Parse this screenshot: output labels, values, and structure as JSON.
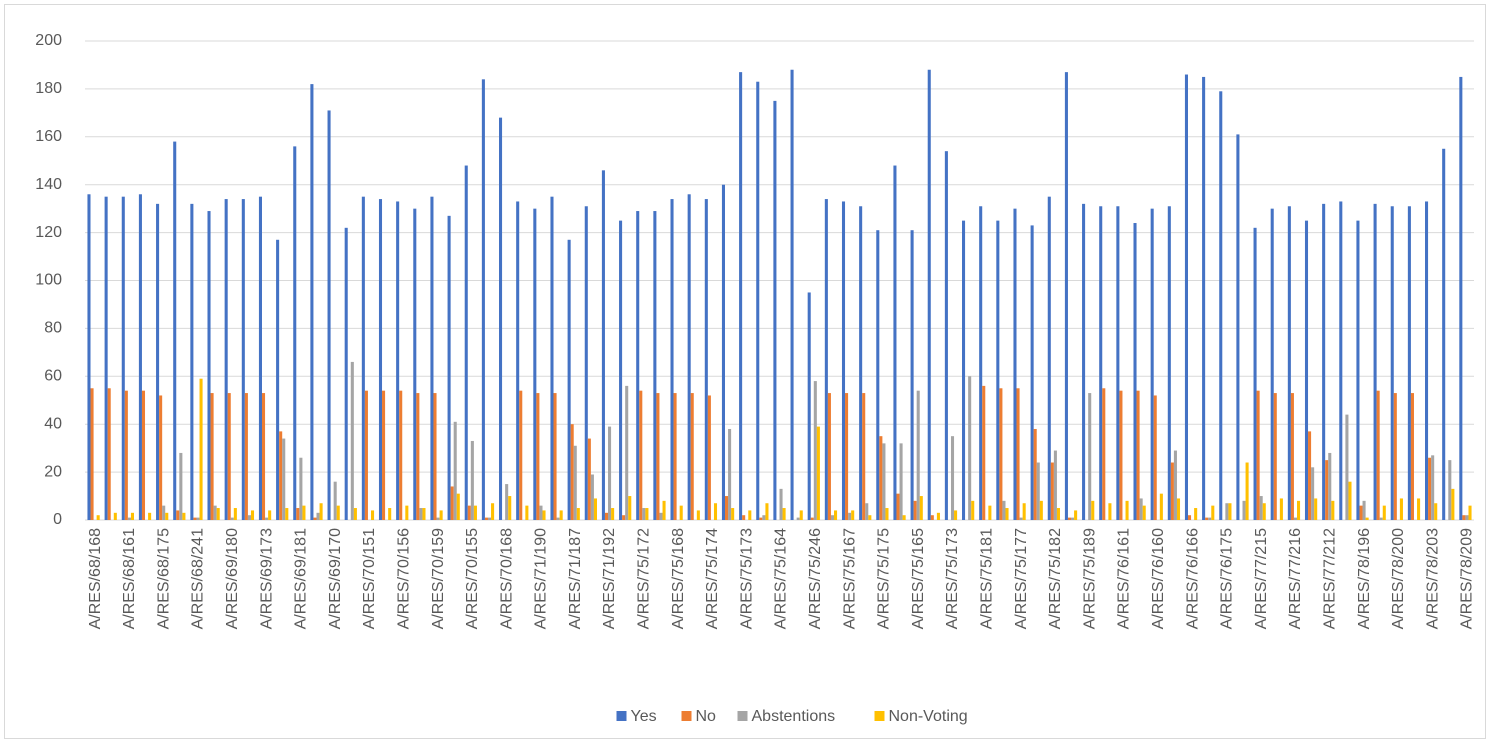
{
  "chart_data": {
    "type": "bar",
    "categories": [
      "A/RES/68/168",
      null,
      "A/RES/68/161",
      null,
      "A/RES/68/175",
      null,
      "A/RES/68/241",
      null,
      "A/RES/69/180",
      null,
      "A/RES/69/173",
      null,
      "A/RES/69/181",
      null,
      "A/RES/69/170",
      null,
      "A/RES/70/151",
      null,
      "A/RES/70/156",
      null,
      "A/RES/70/159",
      null,
      "A/RES/70/155",
      null,
      "A/RES/70/168",
      null,
      "A/RES/71/190",
      null,
      "A/RES/71/187",
      null,
      "A/RES/71/192",
      null,
      "A/RES/75/172",
      null,
      "A/RES/75/168",
      null,
      "A/RES/75/174",
      null,
      "A/RES/75/173",
      null,
      "A/RES/75/164",
      null,
      "A/RES/75/246",
      null,
      "A/RES/75/167",
      null,
      "A/RES/75/175",
      null,
      "A/RES/75/165",
      null,
      "A/RES/75/173",
      null,
      "A/RES/75/181",
      null,
      "A/RES/75/177",
      null,
      "A/RES/75/182",
      null,
      "A/RES/75/189",
      null,
      "A/RES/76/161",
      null,
      "A/RES/76/160",
      null,
      "A/RES/76/166",
      null,
      "A/RES/76/175",
      null,
      "A/RES/77/215",
      null,
      "A/RES/77/216",
      null,
      "A/RES/77/212",
      null,
      "A/RES/78/196",
      null,
      "A/RES/78/200",
      null,
      "A/RES/78/203",
      null,
      "A/RES/78/209"
    ],
    "series": [
      {
        "name": "Yes",
        "color": "#4472c4",
        "values": [
          136,
          135,
          135,
          136,
          132,
          158,
          132,
          129,
          134,
          134,
          135,
          117,
          156,
          182,
          171,
          122,
          135,
          134,
          133,
          130,
          135,
          127,
          148,
          184,
          168,
          133,
          130,
          135,
          117,
          131,
          146,
          125,
          129,
          129,
          134,
          136,
          134,
          140,
          187,
          183,
          175,
          188,
          95,
          134,
          133,
          131,
          121,
          148,
          121,
          188,
          154,
          125,
          131,
          125,
          130,
          123,
          135,
          187,
          132,
          131,
          131,
          124,
          130,
          131,
          186,
          185,
          179,
          161,
          122,
          130,
          131,
          125,
          132,
          133,
          125,
          132,
          131,
          131,
          133,
          155,
          185
        ]
      },
      {
        "name": "No",
        "color": "#ed7d31",
        "values": [
          55,
          55,
          54,
          54,
          52,
          4,
          1,
          53,
          53,
          53,
          53,
          37,
          5,
          1,
          0,
          0,
          54,
          54,
          54,
          53,
          53,
          14,
          6,
          1,
          0,
          54,
          53,
          53,
          40,
          34,
          3,
          2,
          54,
          53,
          53,
          53,
          52,
          10,
          2,
          1,
          0,
          0,
          1,
          53,
          53,
          53,
          35,
          11,
          8,
          2,
          0,
          0,
          56,
          55,
          55,
          38,
          24,
          1,
          0,
          55,
          54,
          54,
          52,
          24,
          2,
          1,
          0,
          0,
          54,
          53,
          53,
          37,
          25,
          0,
          6,
          54,
          53,
          53,
          26,
          0,
          2
        ]
      },
      {
        "name": "Abstentions",
        "color": "#a5a5a5",
        "values": [
          0,
          0,
          1,
          0,
          6,
          28,
          1,
          6,
          1,
          2,
          1,
          34,
          26,
          3,
          16,
          66,
          0,
          0,
          0,
          5,
          1,
          41,
          33,
          1,
          15,
          0,
          6,
          1,
          31,
          19,
          39,
          56,
          5,
          3,
          0,
          0,
          0,
          38,
          0,
          2,
          13,
          1,
          58,
          2,
          3,
          7,
          32,
          32,
          54,
          0,
          35,
          60,
          0,
          8,
          1,
          24,
          29,
          1,
          53,
          0,
          0,
          9,
          0,
          29,
          0,
          1,
          7,
          8,
          10,
          0,
          1,
          22,
          28,
          44,
          8,
          1,
          0,
          0,
          27,
          25,
          2
        ]
      },
      {
        "name": "Non-Voting",
        "color": "#ffc000",
        "values": [
          2,
          3,
          3,
          3,
          3,
          3,
          59,
          5,
          5,
          4,
          4,
          5,
          6,
          7,
          6,
          5,
          4,
          5,
          6,
          5,
          4,
          11,
          6,
          7,
          10,
          6,
          4,
          4,
          5,
          9,
          5,
          10,
          5,
          8,
          6,
          4,
          7,
          5,
          4,
          7,
          5,
          4,
          39,
          4,
          4,
          2,
          5,
          2,
          10,
          3,
          4,
          8,
          6,
          5,
          7,
          8,
          5,
          4,
          8,
          7,
          8,
          6,
          11,
          9,
          5,
          6,
          7,
          24,
          7,
          9,
          8,
          9,
          8,
          16,
          1,
          6,
          9,
          9,
          7,
          13,
          6
        ]
      }
    ],
    "ylim": [
      0,
      200
    ],
    "yticks": [
      0,
      20,
      40,
      60,
      80,
      100,
      120,
      140,
      160,
      180,
      200
    ],
    "grid": true,
    "legend": "bottom"
  }
}
